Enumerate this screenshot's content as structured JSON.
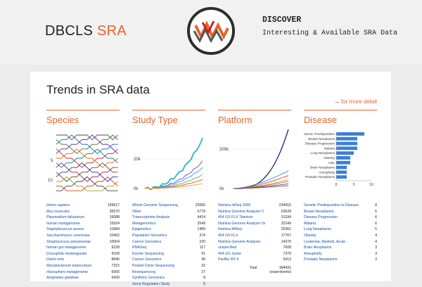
{
  "header": {
    "brand_prefix": "DBCLS ",
    "brand_suffix": "SRA",
    "discover_title": "DISCOVER",
    "discover_subtitle": "Interesting & Available SRA Data"
  },
  "main": {
    "title": "Trends in SRA data",
    "more_arrow": "→",
    "more_link": "for more detail"
  },
  "colors": {
    "accent": "#e8632a",
    "link": "#1a4ea8",
    "bar": "#3b7fd6"
  },
  "species": {
    "heading": "Species",
    "ticks": [
      "5",
      "10"
    ],
    "items": [
      {
        "label": "Homo sapiens",
        "value": "199517"
      },
      {
        "label": "Mus musculus",
        "value": "35570"
      },
      {
        "label": "Plasmodium falciparum",
        "value": "16088"
      },
      {
        "label": "human metagenome",
        "value": "15924"
      },
      {
        "label": "Staphylococcus aureus",
        "value": "11884"
      },
      {
        "label": "Saccharomyces cerevisiae",
        "value": "10462"
      },
      {
        "label": "Streptococcus pneumoniae",
        "value": "10004"
      },
      {
        "label": "human gut metagenome",
        "value": "9228"
      },
      {
        "label": "Drosophila melanogaster",
        "value": "9109"
      },
      {
        "label": "Danio rerio",
        "value": "8846"
      },
      {
        "label": "Mycobacterium tuberculosis",
        "value": "7315"
      },
      {
        "label": "rhizosphere metagenome",
        "value": "6905"
      },
      {
        "label": "Anopheles gambiae",
        "value": "6420"
      }
    ]
  },
  "study": {
    "heading": "Study Type",
    "ticks": [
      "20k",
      "0k"
    ],
    "items": [
      {
        "label": "Whole Genome Sequencing",
        "value": "22065"
      },
      {
        "label": "Other",
        "value": "5779"
      },
      {
        "label": "Transcriptome Analysis",
        "value": "4414"
      },
      {
        "label": "Metagenomics",
        "value": "2549"
      },
      {
        "label": "Epigenetics",
        "value": "1484"
      },
      {
        "label": "Population Genomics",
        "value": "374"
      },
      {
        "label": "Cancer Genomics",
        "value": "220"
      },
      {
        "label": "RNASeq",
        "value": "117"
      },
      {
        "label": "Exome Sequencing",
        "value": "91"
      },
      {
        "label": "Cancer Genomics",
        "value": "49"
      },
      {
        "label": "Pooled Clone Sequencing",
        "value": "32"
      },
      {
        "label": "Resequencing",
        "value": "27"
      },
      {
        "label": "Synthetic Genomics",
        "value": "8"
      },
      {
        "label": "Gene Regulation Study",
        "value": "5"
      }
    ]
  },
  "platform": {
    "heading": "Platform",
    "ticks": [
      "200k",
      "0k"
    ],
    "items": [
      {
        "label": "Illumina HiSeq 2000",
        "value": "234415"
      },
      {
        "label": "Illumina Genome Analyzer II",
        "value": "63028"
      },
      {
        "label": "454 GS FLX Titanium",
        "value": "51184"
      },
      {
        "label": "Illumina Genome Analyzer IIx",
        "value": "32249"
      },
      {
        "label": "Illumina MiSeq",
        "value": "25361"
      },
      {
        "label": "454 GS FLX",
        "value": "17767"
      },
      {
        "label": "Illumina Genome Analyzer",
        "value": "14270"
      },
      {
        "label": "unspecified",
        "value": "7608"
      },
      {
        "label": "454 GS Junior",
        "value": "7379"
      },
      {
        "label": "PacBio RS II",
        "value": "5413"
      }
    ],
    "total_label": "Total",
    "total_value": "584431",
    "total_unit": "(experiments)"
  },
  "disease": {
    "heading": "Disease",
    "bar_labels": [
      "Genet. Predisposition",
      "Breast Neoplasms",
      "Disease Progression",
      "Malaria",
      "Lung Neoplasms",
      "Obesity",
      "AML",
      "Brain Neoplasms",
      "Aneuploidy",
      "Prostatic Neoplasms"
    ],
    "bar_values": [
      8,
      6,
      6,
      6,
      5,
      4,
      4,
      3,
      3,
      3
    ],
    "axis_ticks": [
      "0",
      "5",
      "10"
    ],
    "items": [
      {
        "label": "Genetic Predisposition to Disease",
        "value": "8"
      },
      {
        "label": "Breast Neoplasms",
        "value": "6"
      },
      {
        "label": "Disease Progression",
        "value": "6"
      },
      {
        "label": "Malaria",
        "value": "6"
      },
      {
        "label": "Lung Neoplasms",
        "value": "5"
      },
      {
        "label": "Obesity",
        "value": "4"
      },
      {
        "label": "Leukemia, Myeloid, Acute",
        "value": "4"
      },
      {
        "label": "Brain Neoplasms",
        "value": "3"
      },
      {
        "label": "Aneuploidy",
        "value": "3"
      },
      {
        "label": "Prostatic Neoplasms",
        "value": "3"
      }
    ]
  }
}
